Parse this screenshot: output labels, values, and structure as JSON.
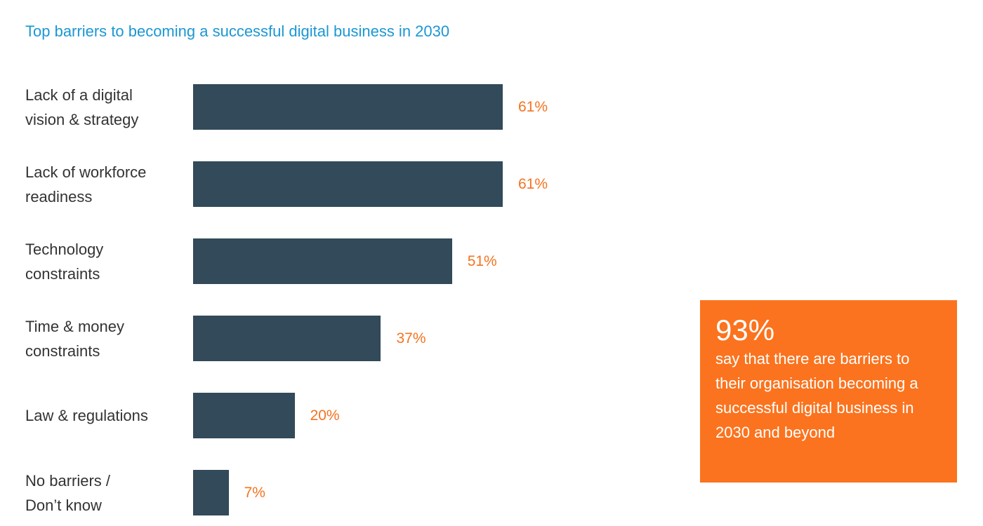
{
  "chart_data": {
    "type": "bar",
    "orientation": "horizontal",
    "title": "Top barriers to becoming a successful digital business in 2030",
    "categories": [
      [
        "Lack of a digital",
        "vision & strategy"
      ],
      [
        "Lack of workforce",
        "readiness"
      ],
      [
        "Technology",
        "constraints"
      ],
      [
        "Time & money",
        "constraints"
      ],
      [
        "Law & regulations"
      ],
      [
        "No barriers /",
        "Don’t know"
      ]
    ],
    "values": [
      61,
      61,
      51,
      37,
      20,
      7
    ],
    "value_labels": [
      "61%",
      "61%",
      "51%",
      "37%",
      "20%",
      "7%"
    ],
    "xlim": [
      0,
      100
    ],
    "grid": false,
    "colors": {
      "bar": "#324a5a",
      "value": "#f47320",
      "title": "#1b97d3"
    }
  },
  "callout": {
    "stat": "93%",
    "text": "say that there are barriers to their organisation becoming a successful digital business in 2030 and beyond",
    "color": "#fb731e"
  }
}
